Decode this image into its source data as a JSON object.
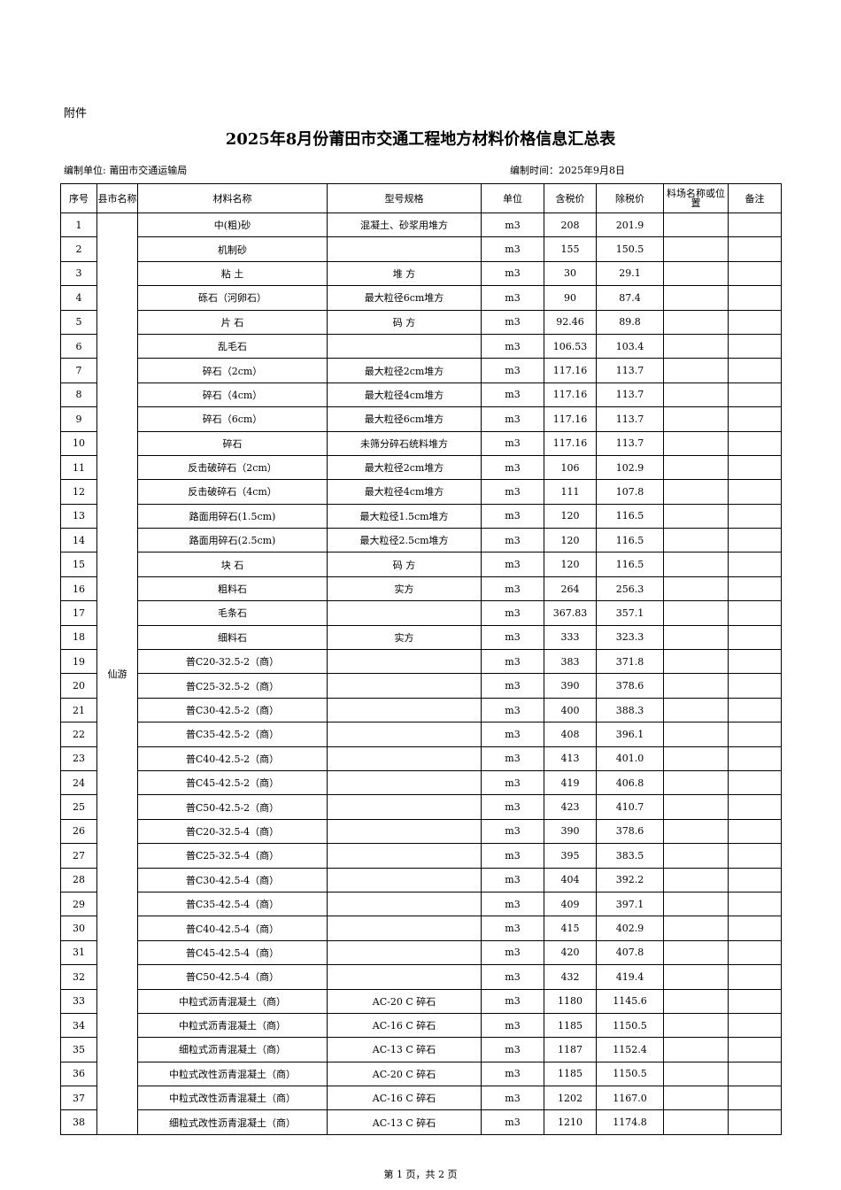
{
  "attachment": "附件",
  "title": "2025年8月份莆田市交通工程地方材料价格信息汇总表",
  "compiler": "编制单位: 莆田市交通运输局",
  "date": "编制时间：2025年9月8日",
  "table": {
    "headers": [
      "序号",
      "县市名称",
      "材料名称",
      "型号规格",
      "单位",
      "含税价",
      "除税价",
      "料场名称或位置",
      "备注"
    ],
    "county": "仙游",
    "rows": [
      [
        "1",
        "中(粗)砂",
        "混凝土、砂浆用堆方",
        "m3",
        "208",
        "201.9"
      ],
      [
        "2",
        "机制砂",
        null,
        "m3",
        "155",
        "150.5"
      ],
      [
        "3",
        "粘 土",
        "堆 方",
        "m3",
        "30",
        "29.1"
      ],
      [
        "4",
        "砾石（河卵石）",
        "最大粒径6cm堆方",
        "m3",
        "90",
        "87.4"
      ],
      [
        "5",
        "片 石",
        "码 方",
        "m3",
        "92.46",
        "89.8"
      ],
      [
        "6",
        "乱毛石",
        null,
        "m3",
        "106.53",
        "103.4"
      ],
      [
        "7",
        "碎石（2cm）",
        "最大粒径2cm堆方",
        "m3",
        "117.16",
        "113.7"
      ],
      [
        "8",
        "碎石（4cm）",
        "最大粒径4cm堆方",
        "m3",
        "117.16",
        "113.7"
      ],
      [
        "9",
        "碎石（6cm）",
        "最大粒径6cm堆方",
        "m3",
        "117.16",
        "113.7"
      ],
      [
        "10",
        "碎石",
        "未筛分碎石统料堆方",
        "m3",
        "117.16",
        "113.7"
      ],
      [
        "11",
        "反击破碎石（2cm）",
        "最大粒径2cm堆方",
        "m3",
        "106",
        "102.9"
      ],
      [
        "12",
        "反击破碎石（4cm）",
        "最大粒径4cm堆方",
        "m3",
        "111",
        "107.8"
      ],
      [
        "13",
        "路面用碎石(1.5cm)",
        "最大粒径1.5cm堆方",
        "m3",
        "120",
        "116.5"
      ],
      [
        "14",
        "路面用碎石(2.5cm)",
        "最大粒径2.5cm堆方",
        "m3",
        "120",
        "116.5"
      ],
      [
        "15",
        "块 石",
        "码 方",
        "m3",
        "120",
        "116.5"
      ],
      [
        "16",
        "粗料石",
        "实方",
        "m3",
        "264",
        "256.3"
      ],
      [
        "17",
        "毛条石",
        null,
        "m3",
        "367.83",
        "357.1"
      ],
      [
        "18",
        "细料石",
        "实方",
        "m3",
        "333",
        "323.3"
      ],
      [
        "19",
        "普C20-32.5-2（商）",
        null,
        "m3",
        "383",
        "371.8"
      ],
      [
        "20",
        "普C25-32.5-2（商）",
        null,
        "m3",
        "390",
        "378.6"
      ],
      [
        "21",
        "普C30-42.5-2（商）",
        null,
        "m3",
        "400",
        "388.3"
      ],
      [
        "22",
        "普C35-42.5-2（商）",
        null,
        "m3",
        "408",
        "396.1"
      ],
      [
        "23",
        "普C40-42.5-2（商）",
        null,
        "m3",
        "413",
        "401.0"
      ],
      [
        "24",
        "普C45-42.5-2（商）",
        null,
        "m3",
        "419",
        "406.8"
      ],
      [
        "25",
        "普C50-42.5-2（商）",
        null,
        "m3",
        "423",
        "410.7"
      ],
      [
        "26",
        "普C20-32.5-4（商）",
        null,
        "m3",
        "390",
        "378.6"
      ],
      [
        "27",
        "普C25-32.5-4（商）",
        null,
        "m3",
        "395",
        "383.5"
      ],
      [
        "28",
        "普C30-42.5-4（商）",
        null,
        "m3",
        "404",
        "392.2"
      ],
      [
        "29",
        "普C35-42.5-4（商）",
        null,
        "m3",
        "409",
        "397.1"
      ],
      [
        "30",
        "普C40-42.5-4（商）",
        null,
        "m3",
        "415",
        "402.9"
      ],
      [
        "31",
        "普C45-42.5-4（商）",
        null,
        "m3",
        "420",
        "407.8"
      ],
      [
        "32",
        "普C50-42.5-4（商）",
        null,
        "m3",
        "432",
        "419.4"
      ],
      [
        "33",
        "中粒式沥青混凝土（商）",
        "AC-20 C 碎石",
        "m3",
        "1180",
        "1145.6"
      ],
      [
        "34",
        "中粒式沥青混凝土（商）",
        "AC-16 C 碎石",
        "m3",
        "1185",
        "1150.5"
      ],
      [
        "35",
        "细粒式沥青混凝土（商）",
        "AC-13 C 碎石",
        "m3",
        "1187",
        "1152.4"
      ],
      [
        "36",
        "中粒式改性沥青混凝土（商）",
        "AC-20 C 碎石",
        "m3",
        "1185",
        "1150.5"
      ],
      [
        "37",
        "中粒式改性沥青混凝土（商）",
        "AC-16 C 碎石",
        "m3",
        "1202",
        "1167.0"
      ],
      [
        "38",
        "细粒式改性沥青混凝土（商）",
        "AC-13 C 碎石",
        "m3",
        "1210",
        "1174.8"
      ]
    ]
  },
  "footer": "第 1 页，共 2 页"
}
